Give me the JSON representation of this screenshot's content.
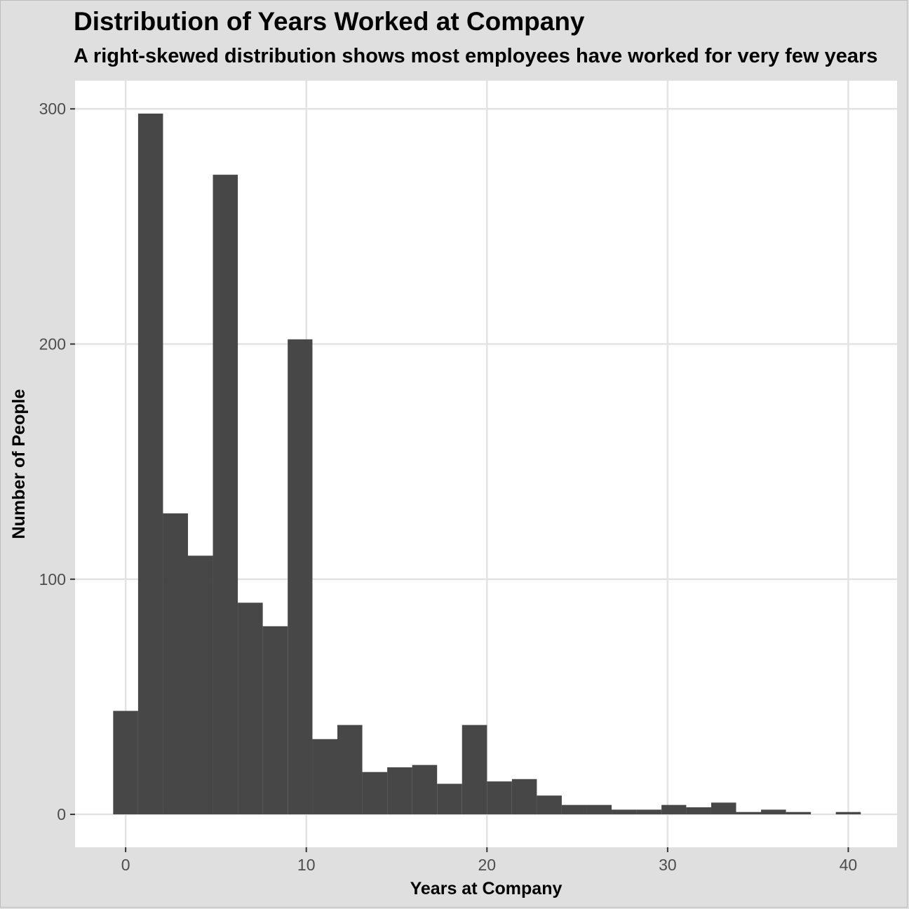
{
  "chart_data": {
    "type": "bar",
    "title": "Distribution of Years Worked at Company",
    "subtitle": "A right-skewed distribution shows most employees have worked for very few years",
    "xlabel": "Years at Company",
    "ylabel": "Number of People",
    "xlim": [
      -2.8,
      42.7
    ],
    "ylim": [
      -14,
      312
    ],
    "x_ticks": [
      0,
      10,
      20,
      30,
      40
    ],
    "y_ticks": [
      0,
      100,
      200,
      300
    ],
    "bin_width": 1.38,
    "bins": [
      {
        "x0": -0.69,
        "x1": 0.69,
        "value": 44
      },
      {
        "x0": 0.69,
        "x1": 2.07,
        "value": 298
      },
      {
        "x0": 2.07,
        "x1": 3.45,
        "value": 128
      },
      {
        "x0": 3.45,
        "x1": 4.83,
        "value": 110
      },
      {
        "x0": 4.83,
        "x1": 6.21,
        "value": 272
      },
      {
        "x0": 6.21,
        "x1": 7.59,
        "value": 90
      },
      {
        "x0": 7.59,
        "x1": 8.97,
        "value": 80
      },
      {
        "x0": 8.97,
        "x1": 10.34,
        "value": 202
      },
      {
        "x0": 10.34,
        "x1": 11.72,
        "value": 32
      },
      {
        "x0": 11.72,
        "x1": 13.1,
        "value": 38
      },
      {
        "x0": 13.1,
        "x1": 14.48,
        "value": 18
      },
      {
        "x0": 14.48,
        "x1": 15.86,
        "value": 20
      },
      {
        "x0": 15.86,
        "x1": 17.24,
        "value": 21
      },
      {
        "x0": 17.24,
        "x1": 18.62,
        "value": 13
      },
      {
        "x0": 18.62,
        "x1": 20.0,
        "value": 38
      },
      {
        "x0": 20.0,
        "x1": 21.38,
        "value": 14
      },
      {
        "x0": 21.38,
        "x1": 22.76,
        "value": 15
      },
      {
        "x0": 22.76,
        "x1": 24.14,
        "value": 8
      },
      {
        "x0": 24.14,
        "x1": 25.52,
        "value": 4
      },
      {
        "x0": 25.52,
        "x1": 26.9,
        "value": 4
      },
      {
        "x0": 26.9,
        "x1": 28.28,
        "value": 2
      },
      {
        "x0": 28.28,
        "x1": 29.66,
        "value": 2
      },
      {
        "x0": 29.66,
        "x1": 31.03,
        "value": 4
      },
      {
        "x0": 31.03,
        "x1": 32.41,
        "value": 3
      },
      {
        "x0": 32.41,
        "x1": 33.79,
        "value": 5
      },
      {
        "x0": 33.79,
        "x1": 35.17,
        "value": 1
      },
      {
        "x0": 35.17,
        "x1": 36.55,
        "value": 2
      },
      {
        "x0": 36.55,
        "x1": 37.93,
        "value": 1
      },
      {
        "x0": 37.93,
        "x1": 39.31,
        "value": 0
      },
      {
        "x0": 39.31,
        "x1": 40.69,
        "value": 1
      }
    ],
    "grid": true,
    "colors": {
      "bar": "#474747",
      "panel": "#ffffff",
      "background": "#dfdfdf",
      "grid": "#e3e3e3"
    }
  }
}
